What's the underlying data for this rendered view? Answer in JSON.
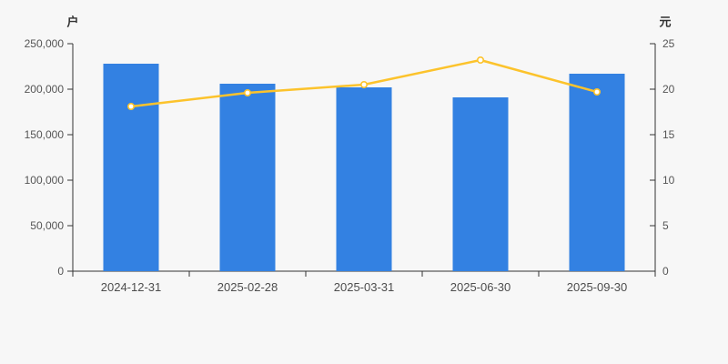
{
  "chart_data": {
    "type": "bar",
    "title": "",
    "categories": [
      "2024-12-31",
      "2025-02-28",
      "2025-03-31",
      "2025-06-30",
      "2025-09-30"
    ],
    "series": [
      {
        "name": "bar-series",
        "type": "bar",
        "yaxis": "left",
        "unit": "户",
        "values": [
          228000,
          206000,
          202000,
          191000,
          217000
        ],
        "color": "#3381e2"
      },
      {
        "name": "line-series",
        "type": "line",
        "yaxis": "right",
        "unit": "元",
        "values": [
          18.1,
          19.6,
          20.5,
          23.2,
          19.7
        ],
        "color": "#fcc32c",
        "marker_fill": "#ffffff"
      }
    ],
    "left_axis": {
      "label": "户",
      "min": 0,
      "max": 250000,
      "tick_step": 50000,
      "tick_labels": [
        "0",
        "50,000",
        "100,000",
        "150,000",
        "200,000",
        "250,000"
      ]
    },
    "right_axis": {
      "label": "元",
      "min": 0,
      "max": 25,
      "tick_step": 5,
      "tick_labels": [
        "0",
        "5",
        "10",
        "15",
        "20",
        "25"
      ]
    },
    "grid": false,
    "legend": false,
    "colors": {
      "background": "#f7f7f7",
      "axis_line": "#333333",
      "tick_text": "#555555",
      "category_text": "#4d4d4d",
      "bar": "#3381e2",
      "line": "#fcc32c",
      "marker_fill": "#ffffff"
    }
  }
}
